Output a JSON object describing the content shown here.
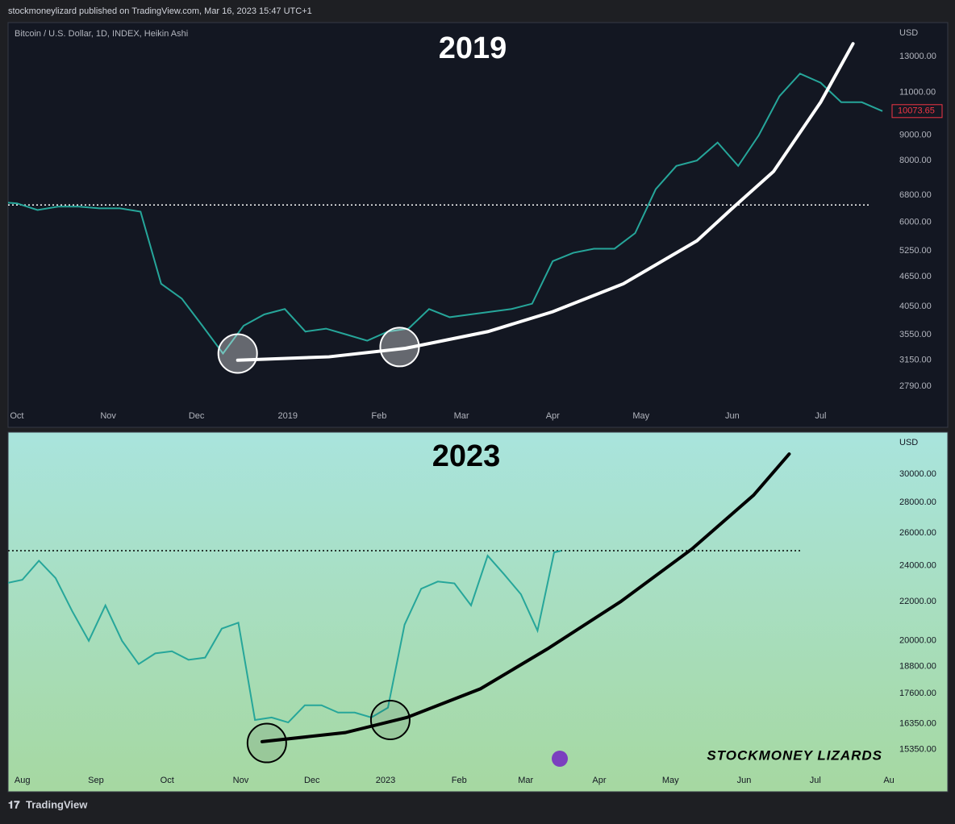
{
  "header": {
    "publisher": "stockmoneylizard published on TradingView.com, Mar 16, 2023 15:47 UTC+1",
    "symbol": "Bitcoin / U.S. Dollar, 1D, INDEX, Heikin Ashi"
  },
  "footer": "TradingView",
  "watermark": "STOCKMONEY LIZARDS",
  "chart_data": [
    {
      "type": "line",
      "title": "2019",
      "axis_unit": "USD",
      "log_scale": true,
      "grid": false,
      "color": "#26a69a",
      "curve_color": "#ffffff",
      "level_color": "#ffffff",
      "circle_color": "#ffffff",
      "x": [
        "2018-09-24",
        "2018-10-01",
        "2018-10-08",
        "2018-10-15",
        "2018-10-22",
        "2018-10-29",
        "2018-11-05",
        "2018-11-12",
        "2018-11-19",
        "2018-11-26",
        "2018-12-03",
        "2018-12-10",
        "2018-12-17",
        "2018-12-24",
        "2018-12-31",
        "2019-01-07",
        "2019-01-14",
        "2019-01-21",
        "2019-01-28",
        "2019-02-04",
        "2019-02-11",
        "2019-02-18",
        "2019-02-25",
        "2019-03-04",
        "2019-03-11",
        "2019-03-18",
        "2019-03-25",
        "2019-04-01",
        "2019-04-08",
        "2019-04-15",
        "2019-04-22",
        "2019-04-29",
        "2019-05-06",
        "2019-05-13",
        "2019-05-20",
        "2019-05-27",
        "2019-06-03",
        "2019-06-10",
        "2019-06-17",
        "2019-06-24",
        "2019-07-01",
        "2019-07-08",
        "2019-07-15",
        "2019-07-22"
      ],
      "values": [
        6600,
        6550,
        6350,
        6450,
        6450,
        6400,
        6400,
        6300,
        4500,
        4200,
        3700,
        3250,
        3700,
        3900,
        4000,
        3600,
        3650,
        3550,
        3450,
        3600,
        3650,
        4000,
        3850,
        3900,
        3950,
        4000,
        4100,
        5000,
        5200,
        5300,
        5300,
        5700,
        7000,
        7800,
        8000,
        8700,
        7800,
        9000,
        10800,
        12000,
        11500,
        10500,
        10500,
        10073.65
      ],
      "last_price_label": "10073.65",
      "curve": {
        "x": [
          "2018-12-15",
          "2019-01-15",
          "2019-02-10",
          "2019-03-10",
          "2019-04-01",
          "2019-04-25",
          "2019-05-20",
          "2019-06-01",
          "2019-06-15",
          "2019-07-01",
          "2019-07-12"
        ],
        "values": [
          3150,
          3200,
          3330,
          3600,
          3950,
          4500,
          5500,
          6400,
          7600,
          10500,
          13800
        ]
      },
      "circles": {
        "x": [
          "2018-12-15",
          "2019-02-08"
        ],
        "values": [
          3250,
          3350
        ]
      },
      "level": {
        "value": 6500,
        "x": [
          "2018-09-28",
          "2019-07-18"
        ]
      },
      "xlim": [
        "2018-09-28",
        "2019-07-25"
      ],
      "xticks": [
        {
          "value": "2018-10-01",
          "label": "Oct"
        },
        {
          "value": "2018-11-01",
          "label": "Nov"
        },
        {
          "value": "2018-12-01",
          "label": "Dec"
        },
        {
          "value": "2019-01-01",
          "label": "2019"
        },
        {
          "value": "2019-02-01",
          "label": "Feb"
        },
        {
          "value": "2019-03-01",
          "label": "Mar"
        },
        {
          "value": "2019-04-01",
          "label": "Apr"
        },
        {
          "value": "2019-05-01",
          "label": "May"
        },
        {
          "value": "2019-06-01",
          "label": "Jun"
        },
        {
          "value": "2019-07-01",
          "label": "Jul"
        }
      ],
      "ylim": [
        2530,
        15000
      ],
      "yticks": [
        {
          "value": 2790,
          "label": "2790.00"
        },
        {
          "value": 3150,
          "label": "3150.00"
        },
        {
          "value": 3550,
          "label": "3550.00"
        },
        {
          "value": 4050,
          "label": "4050.00"
        },
        {
          "value": 4650,
          "label": "4650.00"
        },
        {
          "value": 5250,
          "label": "5250.00"
        },
        {
          "value": 6000,
          "label": "6000.00"
        },
        {
          "value": 6800,
          "label": "6800.00"
        },
        {
          "value": 8000,
          "label": "8000.00"
        },
        {
          "value": 9000,
          "label": "9000.00"
        },
        {
          "value": 11000,
          "label": "11000.00"
        },
        {
          "value": 13000,
          "label": "13000.00"
        }
      ]
    },
    {
      "type": "line",
      "title": "2023",
      "axis_unit": "USD",
      "log_scale": true,
      "grid": false,
      "color": "#26a69a",
      "curve_color": "#000000",
      "level_color": "#000000",
      "circle_color": "#000000",
      "x": [
        "2022-07-25",
        "2022-08-01",
        "2022-08-08",
        "2022-08-15",
        "2022-08-22",
        "2022-08-29",
        "2022-09-05",
        "2022-09-12",
        "2022-09-19",
        "2022-09-26",
        "2022-10-03",
        "2022-10-10",
        "2022-10-17",
        "2022-10-24",
        "2022-10-31",
        "2022-11-07",
        "2022-11-14",
        "2022-11-21",
        "2022-11-28",
        "2022-12-05",
        "2022-12-12",
        "2022-12-19",
        "2022-12-26",
        "2023-01-02",
        "2023-01-09",
        "2023-01-16",
        "2023-01-23",
        "2023-01-30",
        "2023-02-06",
        "2023-02-13",
        "2023-02-20",
        "2023-02-27",
        "2023-03-06",
        "2023-03-13",
        "2023-03-16"
      ],
      "values": [
        23000,
        23200,
        24300,
        23300,
        21500,
        20000,
        21800,
        20000,
        18900,
        19400,
        19500,
        19100,
        19200,
        20600,
        20900,
        16500,
        16600,
        16400,
        17100,
        17100,
        16800,
        16800,
        16600,
        17000,
        20800,
        22700,
        23100,
        23000,
        21800,
        24600,
        23500,
        22400,
        20500,
        24800,
        24900
      ],
      "curve": {
        "x": [
          "2022-11-10",
          "2022-12-15",
          "2023-01-10",
          "2023-02-10",
          "2023-03-10",
          "2023-04-10",
          "2023-05-10",
          "2023-06-05",
          "2023-06-20"
        ],
        "values": [
          15650,
          16000,
          16600,
          17800,
          19600,
          22000,
          25000,
          28500,
          31500
        ]
      },
      "circles": {
        "x": [
          "2022-11-12",
          "2023-01-03"
        ],
        "values": [
          15600,
          16500
        ]
      },
      "level": {
        "value": 24900,
        "x": [
          "2022-07-26",
          "2023-06-25"
        ]
      },
      "xlim": [
        "2022-07-26",
        "2023-08-02"
      ],
      "xticks": [
        {
          "value": "2022-08-01",
          "label": "Aug"
        },
        {
          "value": "2022-09-01",
          "label": "Sep"
        },
        {
          "value": "2022-10-01",
          "label": "Oct"
        },
        {
          "value": "2022-11-01",
          "label": "Nov"
        },
        {
          "value": "2022-12-01",
          "label": "Dec"
        },
        {
          "value": "2023-01-01",
          "label": "2023"
        },
        {
          "value": "2023-02-01",
          "label": "Feb"
        },
        {
          "value": "2023-03-01",
          "label": "Mar"
        },
        {
          "value": "2023-04-01",
          "label": "Apr"
        },
        {
          "value": "2023-05-01",
          "label": "May"
        },
        {
          "value": "2023-06-01",
          "label": "Jun"
        },
        {
          "value": "2023-07-01",
          "label": "Jul"
        },
        {
          "value": "2023-08-01",
          "label": "Au"
        }
      ],
      "ylim": [
        14610,
        32960
      ],
      "yticks": [
        {
          "value": 15350,
          "label": "15350.00"
        },
        {
          "value": 16350,
          "label": "16350.00"
        },
        {
          "value": 17600,
          "label": "17600.00"
        },
        {
          "value": 18800,
          "label": "18800.00"
        },
        {
          "value": 20000,
          "label": "20000.00"
        },
        {
          "value": 22000,
          "label": "22000.00"
        },
        {
          "value": 24000,
          "label": "24000.00"
        },
        {
          "value": 26000,
          "label": "26000.00"
        },
        {
          "value": 28000,
          "label": "28000.00"
        },
        {
          "value": 30000,
          "label": "30000.00"
        }
      ]
    }
  ]
}
